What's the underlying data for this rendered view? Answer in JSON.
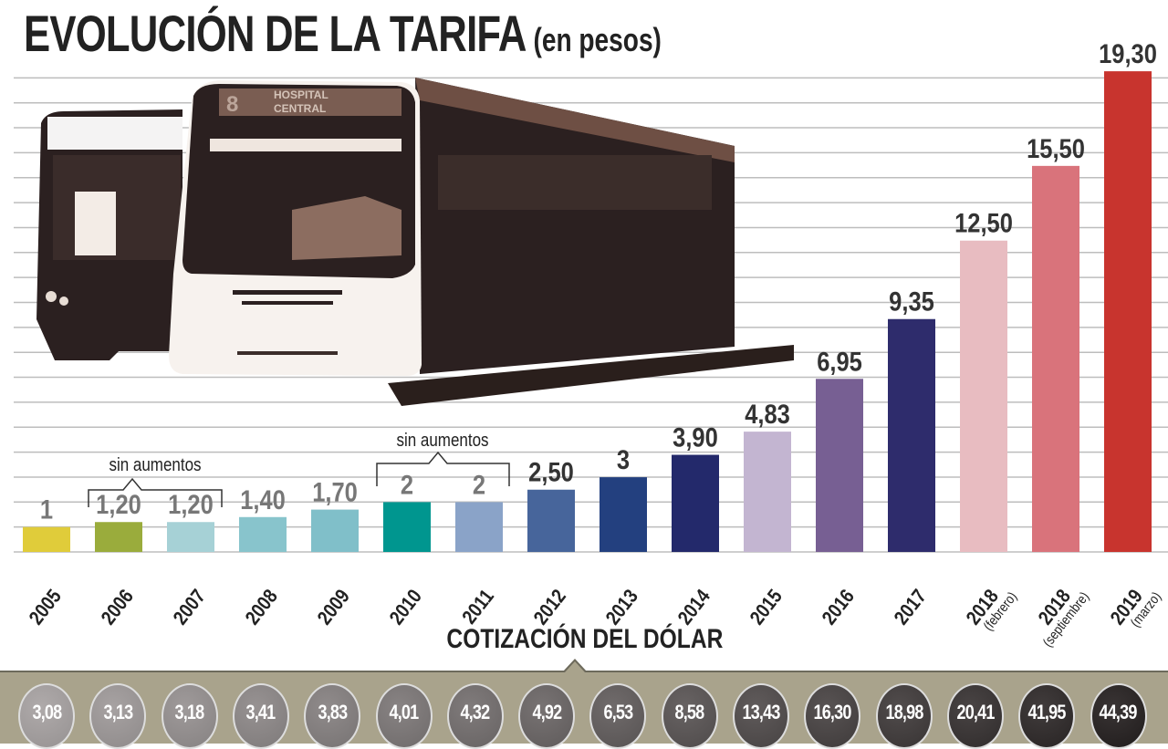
{
  "title": "EVOLUCIÓN DE LA TARIFA",
  "subtitle": "(en pesos)",
  "annotations": [
    "sin aumentos",
    "sin aumentos"
  ],
  "chart_data": {
    "type": "bar",
    "title": "EVOLUCIÓN DE LA TARIFA (en pesos)",
    "categories": [
      "2005",
      "2006",
      "2007",
      "2008",
      "2009",
      "2010",
      "2011",
      "2012",
      "2013",
      "2014",
      "2015",
      "2016",
      "2017",
      "2018",
      "2018",
      "2019"
    ],
    "category_notes": [
      "",
      "",
      "",
      "",
      "",
      "",
      "",
      "",
      "",
      "",
      "",
      "",
      "",
      "(febrero)",
      "(septiembre)",
      "(marzo)"
    ],
    "values": [
      1,
      1.2,
      1.2,
      1.4,
      1.7,
      2,
      2,
      2.5,
      3,
      3.9,
      4.83,
      6.95,
      9.35,
      12.5,
      15.5,
      19.3
    ],
    "value_labels": [
      "1",
      "1,20",
      "1,20",
      "1,40",
      "1,70",
      "2",
      "2",
      "2,50",
      "3",
      "3,90",
      "4,83",
      "6,95",
      "9,35",
      "12,50",
      "15,50",
      "19,30"
    ],
    "colors": [
      "#e0cc3a",
      "#9aac3c",
      "#a6d1d6",
      "#88c4cc",
      "#80bfc9",
      "#00968f",
      "#8aa3c8",
      "#47659b",
      "#23407f",
      "#23296b",
      "#c3b5d1",
      "#775f93",
      "#2e2c6c",
      "#e8bcc1",
      "#d9737b",
      "#c8342e"
    ],
    "ylim": [
      0,
      20
    ],
    "grid": true,
    "xlabel": "",
    "ylabel": ""
  },
  "dolar": {
    "title": "COTIZACIÓN DEL DÓLAR",
    "values": [
      "3,08",
      "3,13",
      "3,18",
      "3,41",
      "3,83",
      "4,01",
      "4,32",
      "4,92",
      "6,53",
      "8,58",
      "13,43",
      "16,30",
      "18,98",
      "20,41",
      "41,95",
      "44,39"
    ]
  }
}
